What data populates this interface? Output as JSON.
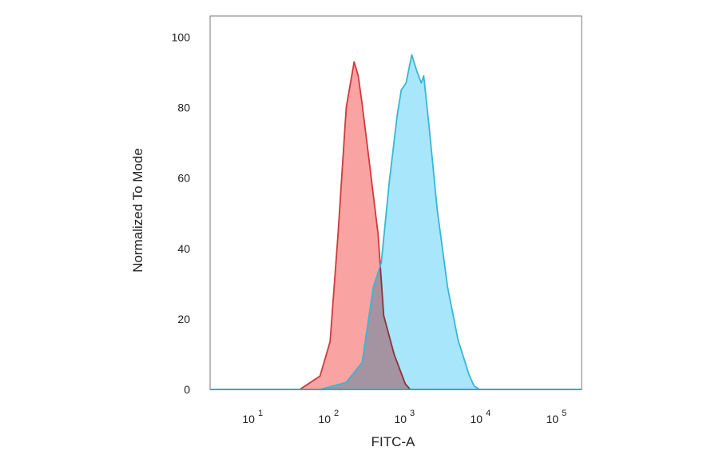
{
  "chart_data": {
    "type": "area",
    "title": "",
    "xlabel": "FITC-A",
    "ylabel": "Normalized To Mode",
    "x_scale": "log",
    "xlim": [
      2.5,
      195000
    ],
    "ylim": [
      0,
      106
    ],
    "grid": false,
    "legend": "none",
    "x_ticks": [
      {
        "base": "10",
        "exp": "1",
        "value": 10
      },
      {
        "base": "10",
        "exp": "2",
        "value": 100
      },
      {
        "base": "10",
        "exp": "3",
        "value": 1000
      },
      {
        "base": "10",
        "exp": "4",
        "value": 10000
      },
      {
        "base": "10",
        "exp": "5",
        "value": 100000
      }
    ],
    "y_ticks": [
      "0",
      "20",
      "40",
      "60",
      "80",
      "100"
    ],
    "series": [
      {
        "color": "#d0393b",
        "fill": "#f9a3a3",
        "x": [
          38,
          70,
          95,
          121,
          155,
          197,
          223,
          251,
          298,
          408,
          483,
          662,
          930,
          1076
        ],
        "y": [
          0,
          3.8,
          13.6,
          44,
          80,
          93,
          89,
          81,
          68,
          44,
          21,
          10,
          1.6,
          0
        ]
      },
      {
        "color": "#38b6d8",
        "fill": "#a8e6fb",
        "x": [
          70,
          155,
          251,
          353,
          449,
          573,
          730,
          824,
          953,
          1130,
          1337,
          1510,
          1626,
          1925,
          2449,
          3357,
          4603,
          6467,
          7482,
          8850
        ],
        "y": [
          0,
          2,
          7.7,
          29,
          36,
          59,
          78,
          85,
          87,
          95,
          90,
          87,
          89,
          74,
          51,
          29,
          14,
          4,
          1,
          0
        ]
      }
    ]
  }
}
